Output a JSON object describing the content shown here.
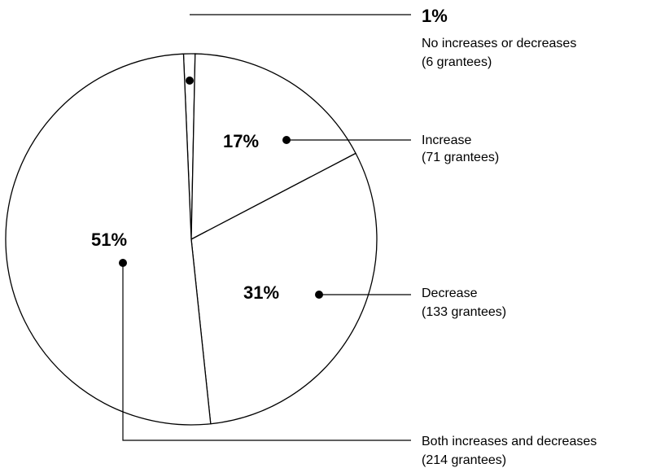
{
  "chart_data": {
    "type": "pie",
    "title": "",
    "slices": [
      {
        "percent": "1%",
        "value": 1,
        "label": "No increases or decreases",
        "count": "(6 grantees)"
      },
      {
        "percent": "17%",
        "value": 17,
        "label": "Increase",
        "count": "(71 grantees)"
      },
      {
        "percent": "31%",
        "value": 31,
        "label": "Decrease",
        "count": "(133 grantees)"
      },
      {
        "percent": "51%",
        "value": 51,
        "label": "Both increases and decreases",
        "count": "(214 grantees)"
      }
    ],
    "colors": {
      "fill": "#ffffff",
      "stroke": "#000000"
    }
  }
}
